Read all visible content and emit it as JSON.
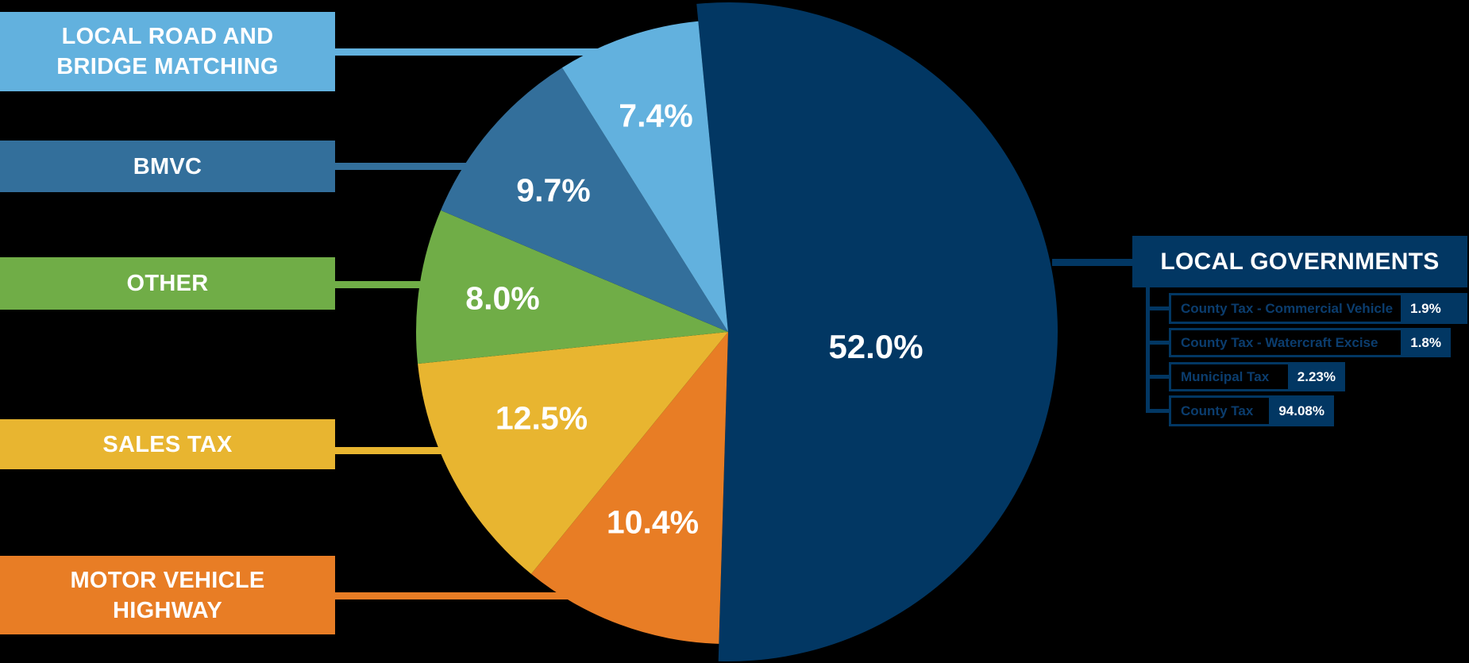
{
  "chart_data": {
    "type": "pie",
    "title": "",
    "start_angle_deg": -5.5,
    "slices": [
      {
        "key": "local_governments",
        "label": "LOCAL GOVERNMENTS",
        "value": 52.0,
        "display": "52.0%",
        "color": "#023763",
        "exploded": true
      },
      {
        "key": "motor_vehicle_highway",
        "label": "MOTOR VEHICLE HIGHWAY",
        "value": 10.4,
        "display": "10.4%",
        "color": "#e87d25"
      },
      {
        "key": "sales_tax",
        "label": "SALES TAX",
        "value": 12.5,
        "display": "12.5%",
        "color": "#e8b530"
      },
      {
        "key": "other",
        "label": "OTHER",
        "value": 8.0,
        "display": "8.0%",
        "color": "#70ad47"
      },
      {
        "key": "bmvc",
        "label": "BMVC",
        "value": 9.7,
        "display": "9.7%",
        "color": "#336f9b"
      },
      {
        "key": "local_road_bridge",
        "label": "LOCAL ROAD AND BRIDGE MATCHING",
        "value": 7.4,
        "display": "7.4%",
        "color": "#62b1de"
      }
    ],
    "breakdown": {
      "parent": "LOCAL GOVERNMENTS",
      "items": [
        {
          "label": "County Tax - Commercial Vehicle",
          "value": 1.9,
          "display": "1.9%"
        },
        {
          "label": "County Tax - Watercraft Excise",
          "value": 1.8,
          "display": "1.8%"
        },
        {
          "label": "Municipal Tax",
          "value": 2.23,
          "display": "2.23%"
        },
        {
          "label": "County Tax",
          "value": 94.08,
          "display": "94.08%"
        }
      ]
    }
  },
  "labels": {
    "local_road_bridge": {
      "line1": "LOCAL ROAD AND",
      "line2": "BRIDGE MATCHING"
    },
    "bmvc": "BMVC",
    "other": "OTHER",
    "sales_tax": "SALES TAX",
    "motor_vehicle_highway": {
      "line1": "MOTOR VEHICLE",
      "line2": "HIGHWAY"
    },
    "local_governments": "LOCAL GOVERNMENTS"
  },
  "pct": {
    "local_road_bridge": "7.4%",
    "bmvc": "9.7%",
    "other": "8.0%",
    "sales_tax": "12.5%",
    "motor_vehicle_highway": "10.4%",
    "local_governments": "52.0%"
  },
  "breakdown": [
    {
      "label": "County Tax - Commercial Vehicle",
      "value": "1.9%"
    },
    {
      "label": "County Tax - Watercraft Excise",
      "value": "1.8%"
    },
    {
      "label": "Municipal Tax",
      "value": "2.23%"
    },
    {
      "label": "County Tax",
      "value": "94.08%"
    }
  ],
  "colors": {
    "local_road_bridge": "#62b1de",
    "bmvc": "#336f9b",
    "other": "#70ad47",
    "sales_tax": "#e8b530",
    "motor_vehicle_highway": "#e87d25",
    "local_governments": "#023763"
  }
}
